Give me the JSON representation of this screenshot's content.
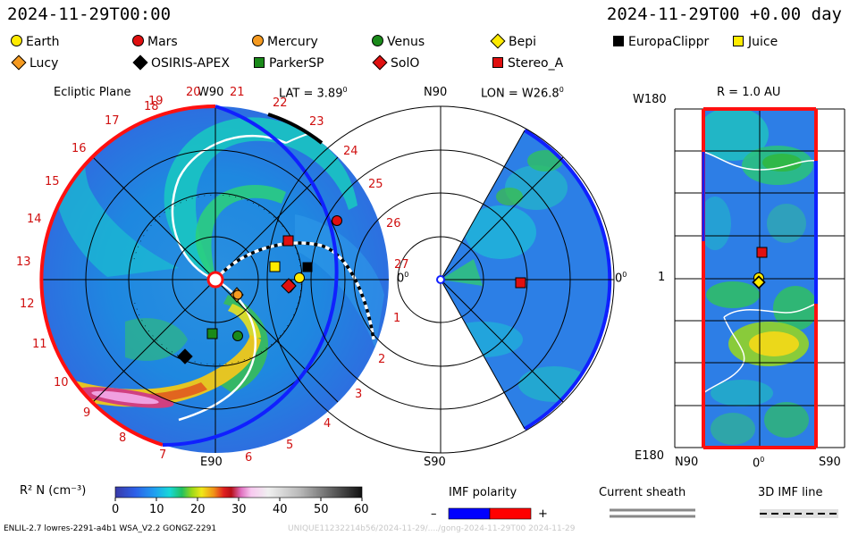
{
  "header": {
    "time": "2024-11-29T00:00",
    "offset": "2024-11-29T00 +0.00 day"
  },
  "legend": [
    {
      "name": "Earth",
      "marker": "circle",
      "color": "#ffeb00"
    },
    {
      "name": "Mars",
      "marker": "circle",
      "color": "#e01010"
    },
    {
      "name": "Mercury",
      "marker": "circle",
      "color": "#f59a20"
    },
    {
      "name": "Venus",
      "marker": "circle",
      "color": "#1a8a1a"
    },
    {
      "name": "Bepi",
      "marker": "diamond",
      "color": "#ffeb00"
    },
    {
      "name": "EuropaClippr",
      "marker": "square",
      "color": "#000000"
    },
    {
      "name": "Juice",
      "marker": "square",
      "color": "#ffeb00"
    },
    {
      "name": "Lucy",
      "marker": "diamond",
      "color": "#f59a20"
    },
    {
      "name": "OSIRIS-APEX",
      "marker": "diamond",
      "color": "#000000"
    },
    {
      "name": "ParkerSP",
      "marker": "square",
      "color": "#1a8a1a"
    },
    {
      "name": "SolO",
      "marker": "diamond",
      "color": "#e01010"
    },
    {
      "name": "Stereo_A",
      "marker": "square",
      "color": "#e01010"
    }
  ],
  "panel_ecliptic": {
    "title": "Ecliptic Plane",
    "top_label": "W90",
    "bottom_label": "E90",
    "right_label": "0",
    "lat_label": "LAT = 3.89",
    "carrington_ticks": [
      "19",
      "20",
      "21",
      "22",
      "23",
      "24",
      "25",
      "26",
      "27",
      "1",
      "2",
      "3",
      "4",
      "5",
      "6",
      "7",
      "8",
      "9",
      "10",
      "11",
      "12",
      "13",
      "14",
      "15",
      "16",
      "17",
      "18"
    ]
  },
  "panel_meridional": {
    "top_label": "N90",
    "bottom_label": "S90",
    "right_label": "0",
    "lon_label": "LON = W26.8"
  },
  "panel_map": {
    "title": "R = 1.0 AU",
    "y_top": "W180",
    "y_mid": "1",
    "y_bottom": "E180",
    "x_left": "N90",
    "x_mid": "0",
    "x_right": "S90"
  },
  "colorbar": {
    "label": "R² N (cm⁻³)",
    "ticks": [
      "0",
      "10",
      "20",
      "30",
      "40",
      "50",
      "60"
    ],
    "range": [
      0,
      60
    ]
  },
  "imf_polarity": {
    "label": "IMF polarity",
    "minus": "–",
    "plus": "+",
    "neg_color": "#0000ff",
    "pos_color": "#ff0000"
  },
  "current_sheath": {
    "label": "Current sheath"
  },
  "imf_line": {
    "label": "3D IMF line"
  },
  "footer": {
    "left": "ENLIL-2.7 lowres-2291-a4b1 WSA_V2.2 GONGZ-2291",
    "right": "UNIQUE11232214b56/2024-11-29/..../gong-2024-11-29T00    2024-11-29"
  }
}
